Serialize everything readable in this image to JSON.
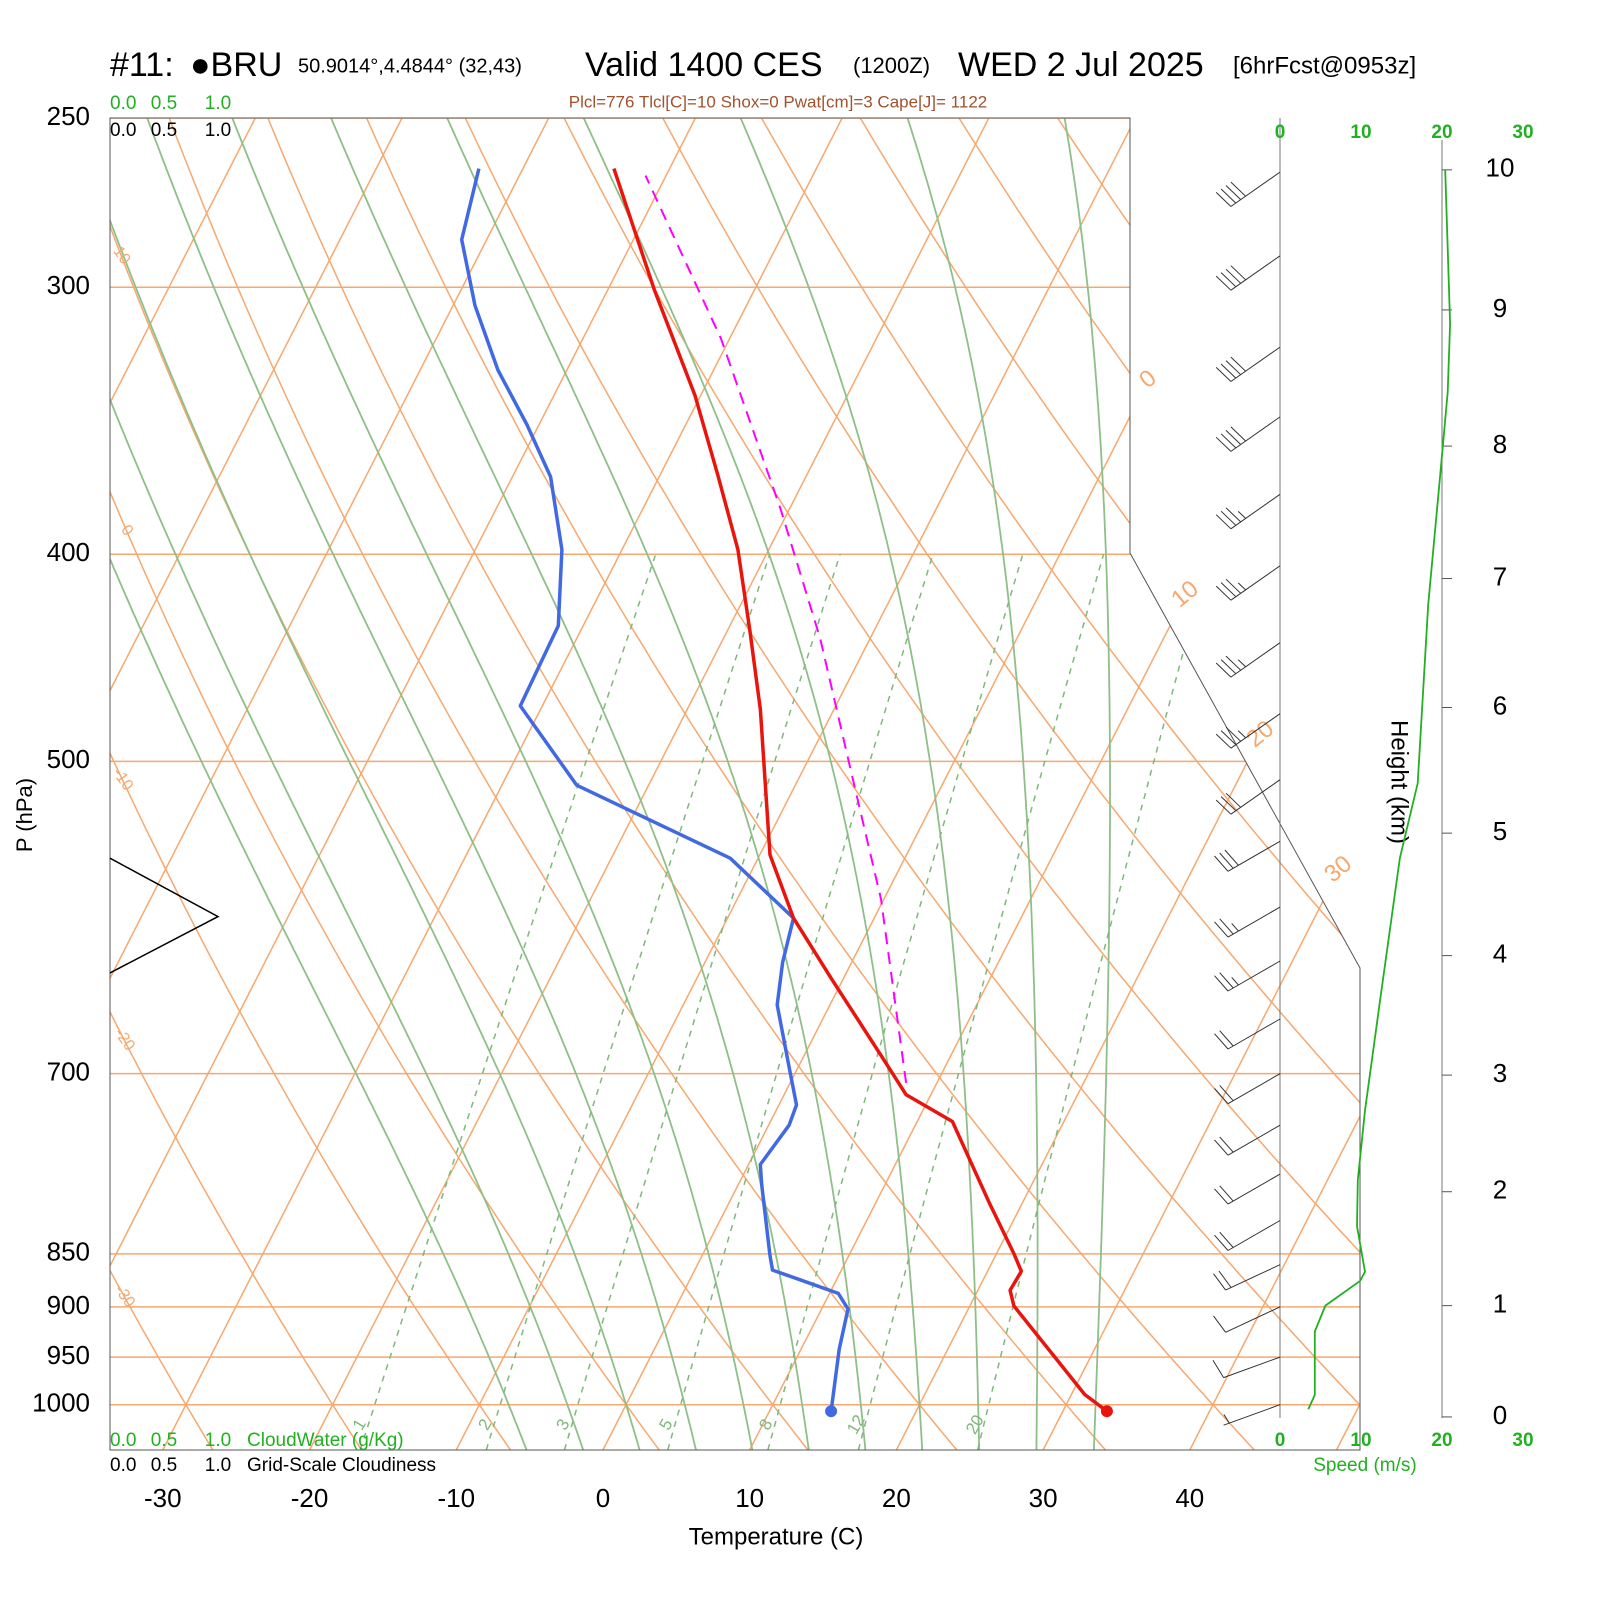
{
  "chart_data": {
    "type": "skewt",
    "title": {
      "id": "#11:",
      "station": "●BRU",
      "coords": "50.9014°,4.4844° (32,43)",
      "valid": "Valid 1400 CES",
      "utc": "(1200Z)",
      "date": "WED 2 Jul 2025",
      "forecast": "[6hrFcst@0953z]"
    },
    "subtitle": "Plcl=776 Tlcl[C]=10 Shox=0 Pwat[cm]=3 Cape[J]= 1122",
    "xlabel": "Temperature (C)",
    "ylabel": "P (hPa)",
    "height_label": "Height (km)",
    "speed_label": "Speed (m/s)",
    "cloud_water_label": "CloudWater (g/Kg)",
    "cloudiness_label": "Grid-Scale Cloudiness",
    "xlim": [
      -33.6,
      51.6
    ],
    "xticks": [
      -30,
      -20,
      -10,
      0,
      10,
      20,
      30,
      40
    ],
    "ylim": [
      1050,
      250
    ],
    "yticks": [
      250,
      300,
      400,
      500,
      700,
      850,
      900,
      950,
      1000
    ],
    "log_y": true,
    "height_ticks": [
      0,
      1,
      2,
      3,
      4,
      5,
      6,
      7,
      8,
      9,
      10
    ],
    "speed_xlim": [
      0,
      30
    ],
    "speed_ticks": [
      0,
      10,
      20,
      30
    ],
    "cloud_xlim": [
      0,
      1
    ],
    "cloud_ticks": [
      {
        "value": 0,
        "label": "0.0"
      },
      {
        "value": 0.5,
        "label": "0.5"
      },
      {
        "value": 1,
        "label": "1.0"
      }
    ],
    "cloud_water_color": "#22b022",
    "isotherms": {
      "color": "#f6a86e",
      "values": [
        -110,
        -100,
        -90,
        -80,
        -70,
        -60,
        -50,
        -40,
        -30,
        -20,
        -10,
        0,
        10,
        20,
        30,
        40,
        50
      ]
    },
    "isotherm_labels": [
      0,
      10,
      20,
      30
    ],
    "dry_adiabats": {
      "color": "#f6a86e",
      "values": [
        -40,
        -30,
        -20,
        -10,
        0,
        10,
        20,
        30,
        40,
        50,
        60,
        70,
        80,
        90,
        100,
        110,
        120,
        130,
        140,
        150,
        160,
        170,
        180
      ]
    },
    "dry_adiabat_labels": [
      10,
      0,
      -10,
      -20,
      -30
    ],
    "moist_adiabats": {
      "color": "#8fbf88",
      "values": [
        -8,
        -4,
        0,
        4,
        8,
        12,
        16,
        20,
        24,
        28,
        32
      ]
    },
    "mixing_ratios": {
      "color": "#7fb87a",
      "values": [
        1,
        2,
        3,
        5,
        8,
        12,
        20
      ]
    },
    "temperature": {
      "color": "#e8150f",
      "pressure": [
        1007,
        989,
        899,
        884,
        866,
        850,
        804,
        737,
        716,
        686,
        632,
        592,
        553,
        515,
        473,
        434,
        398,
        367,
        337,
        301,
        264
      ],
      "values": [
        33.0,
        30.9,
        23.0,
        22.2,
        22.3,
        21.2,
        17.7,
        12.4,
        8.3,
        5.2,
        -0.8,
        -5.5,
        -9.3,
        -11.9,
        -15.0,
        -18.5,
        -22.1,
        -26.1,
        -30.4,
        -36.8,
        -43.8
      ]
    },
    "dewpoint": {
      "color": "#4169e1",
      "pressure": [
        1007,
        942,
        902,
        887,
        874,
        865,
        851,
        789,
        772,
        740,
        724,
        697,
        650,
        621,
        592,
        555,
        513,
        471,
        432,
        398,
        368,
        348,
        328,
        306,
        285,
        264
      ],
      "values": [
        14.2,
        12.6,
        11.8,
        10.6,
        7.5,
        5.3,
        4.6,
        1.6,
        0.8,
        1.4,
        1.2,
        -0.5,
        -3.6,
        -4.7,
        -5.5,
        -11.9,
        -24.9,
        -31.5,
        -31.7,
        -34.1,
        -37.4,
        -40.8,
        -44.7,
        -48.5,
        -51.7,
        -53.0
      ]
    },
    "parcel": {
      "color": "#ff00ff",
      "pressure": [
        707,
        580,
        515,
        438,
        381,
        317,
        266
      ],
      "values": [
        7.9,
        -0.2,
        -5.8,
        -13.4,
        -20.6,
        -30.6,
        -41.4
      ]
    },
    "wind_speed": {
      "color": "#22b022",
      "height": [
        0.07,
        0.2,
        0.77,
        1.0,
        1.22,
        1.3,
        1.7,
        2.1,
        2.7,
        3.6,
        4.8,
        5.4,
        6.8,
        7.8,
        8.4,
        8.9,
        10
      ],
      "values": [
        3.5,
        4.3,
        4.3,
        5.6,
        9.9,
        10.5,
        9.5,
        9.6,
        10.5,
        12.3,
        14.8,
        17,
        18.3,
        19.8,
        20.7,
        21,
        20.4
      ]
    },
    "wind_barbs": {
      "color": "#333333",
      "pressure": [
        265,
        290,
        320,
        345,
        375,
        405,
        440,
        475,
        510,
        545,
        585,
        620,
        660,
        700,
        740,
        780,
        820,
        860,
        900,
        950,
        1000
      ],
      "speed": [
        40,
        40,
        40,
        40,
        35,
        35,
        35,
        35,
        30,
        30,
        25,
        25,
        20,
        20,
        20,
        20,
        20,
        20,
        10,
        10,
        5
      ],
      "direction": [
        235,
        235,
        235,
        235,
        235,
        235,
        235,
        235,
        235,
        240,
        240,
        240,
        240,
        240,
        240,
        240,
        240,
        245,
        245,
        250,
        250
      ]
    },
    "cloudiness": {
      "color": "#000000",
      "pressure": [
        555,
        591,
        628
      ],
      "values": [
        0,
        1,
        0
      ]
    }
  }
}
